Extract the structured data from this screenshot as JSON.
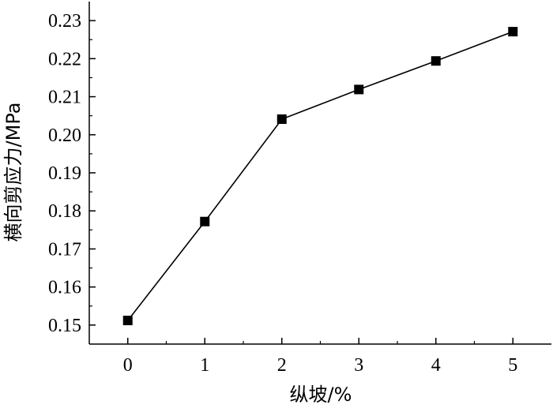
{
  "chart_data": {
    "type": "line",
    "title": "",
    "xlabel": "纵坡/%",
    "ylabel": "横向剪应力/MPa",
    "x": [
      0,
      1,
      2,
      3,
      4,
      5
    ],
    "series": [
      {
        "values": [
          0.1512,
          0.1772,
          0.2041,
          0.2119,
          0.2194,
          0.2271
        ]
      }
    ],
    "xlim": [
      -0.5,
      5.5
    ],
    "ylim": [
      0.145,
      0.235
    ],
    "xticks": [
      0,
      1,
      2,
      3,
      4,
      5
    ],
    "yticks": [
      0.15,
      0.16,
      0.17,
      0.18,
      0.19,
      0.2,
      0.21,
      0.22,
      0.23
    ],
    "ytick_labels": [
      "0.15",
      "0.16",
      "0.17",
      "0.18",
      "0.19",
      "0.20",
      "0.21",
      "0.22",
      "0.23"
    ],
    "xtick_labels": [
      "0",
      "1",
      "2",
      "3",
      "4",
      "5"
    ],
    "marker": "square",
    "grid": false,
    "legend": "none",
    "colors": {
      "line": "#000000",
      "marker": "#000000",
      "axis": "#000000"
    }
  }
}
